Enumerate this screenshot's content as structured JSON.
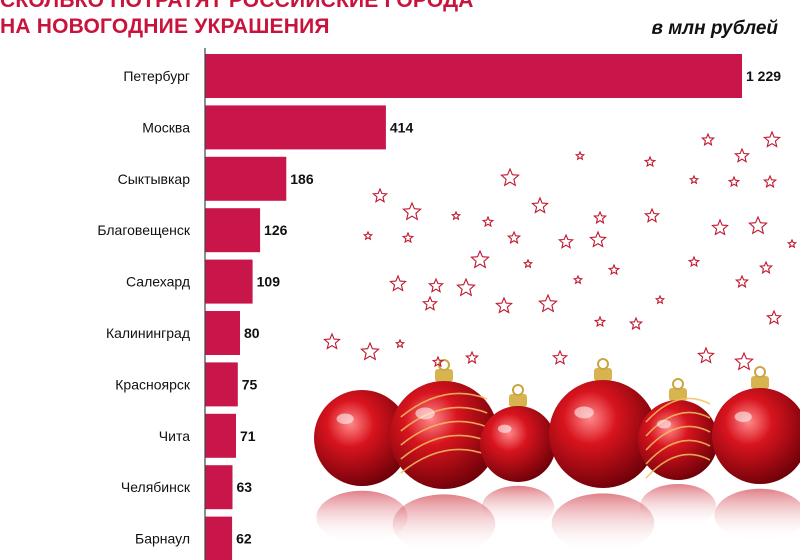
{
  "title_lines": [
    "СКОЛЬКО ПОТРАТЯТ РОССИЙСКИЕ ГОРОДА",
    "НА НОВОГОДНИЕ УКРАШЕНИЯ"
  ],
  "unit_label": "в млн рублей",
  "colors": {
    "bar": "#c8164a",
    "title": "#c8143c",
    "axis": "#444444",
    "star": "#c01830",
    "ornament": "#d8141e"
  },
  "decoration": {
    "illustration": "red-christmas-ornaments-with-reflection",
    "stars_icon": "star-outline-icon"
  },
  "chart_data": {
    "type": "bar",
    "orientation": "horizontal",
    "categories": [
      "Петербург",
      "Москва",
      "Сыктывкар",
      "Благовещенск",
      "Салехард",
      "Калининград",
      "Красноярск",
      "Чита",
      "Челябинск",
      "Барнаул"
    ],
    "values": [
      1229,
      414,
      186,
      126,
      109,
      80,
      75,
      71,
      63,
      62
    ],
    "value_labels": [
      "1 229",
      "414",
      "186",
      "126",
      "109",
      "80",
      "75",
      "71",
      "63",
      "62"
    ],
    "xlim": [
      0,
      1229
    ],
    "grid": false,
    "legend": "none"
  }
}
